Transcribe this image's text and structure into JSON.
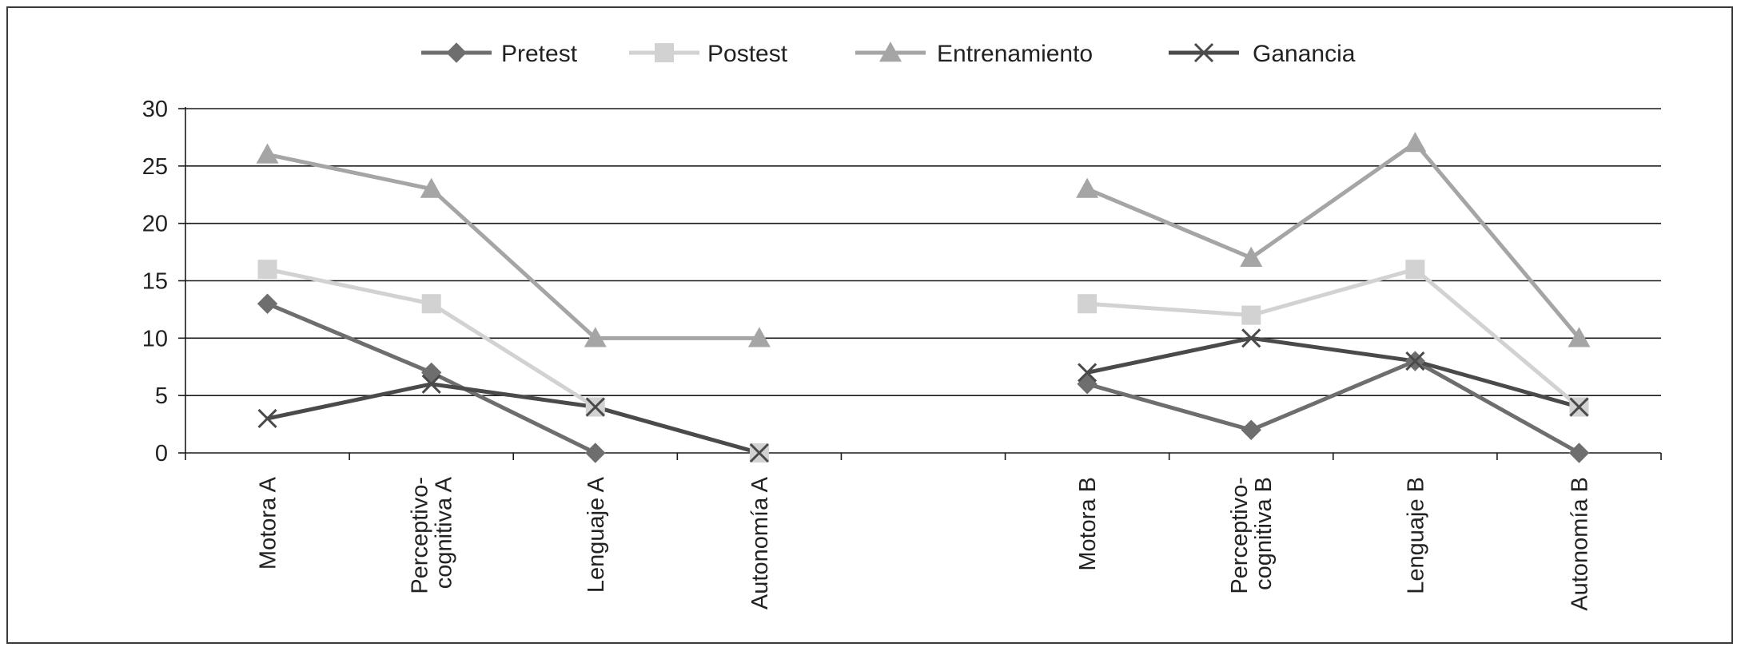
{
  "chart_data": {
    "type": "line",
    "categories": [
      [
        "Motora A"
      ],
      [
        "Perceptivo-",
        "cognitiva A"
      ],
      [
        "Lenguaje A"
      ],
      [
        "Autonomía A"
      ],
      [
        ""
      ],
      [
        "Motora B"
      ],
      [
        "Perceptivo-",
        "cognitiva B"
      ],
      [
        "Lenguaje B"
      ],
      [
        "Autonomía B"
      ]
    ],
    "ylim": [
      0,
      30
    ],
    "yticks": [
      0,
      5,
      10,
      15,
      20,
      25,
      30
    ],
    "grid": true,
    "legend_position": "top",
    "series": [
      {
        "name": "Pretest",
        "color": "#6e6e6e",
        "marker": "diamond",
        "values": [
          13,
          7,
          0,
          null,
          null,
          6,
          2,
          8,
          0
        ]
      },
      {
        "name": "Postest",
        "color": "#d2d2d2",
        "marker": "square",
        "values": [
          16,
          13,
          4,
          0,
          null,
          13,
          12,
          16,
          4
        ]
      },
      {
        "name": "Entrenamiento",
        "color": "#a5a5a5",
        "marker": "triangle",
        "values": [
          26,
          23,
          10,
          10,
          null,
          23,
          17,
          27,
          10
        ]
      },
      {
        "name": "Ganancia",
        "color": "#4a4a4a",
        "marker": "x",
        "values": [
          3,
          6,
          4,
          0,
          null,
          7,
          10,
          8,
          4
        ]
      }
    ]
  }
}
